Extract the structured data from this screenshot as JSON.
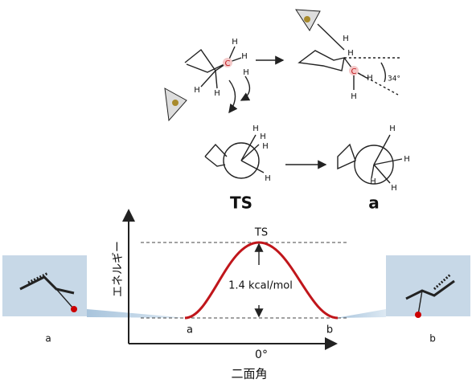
{
  "reaction_top": {
    "reactant_labels": [
      "H",
      "H",
      "C",
      "H",
      "H",
      "H"
    ],
    "product_labels": [
      "H",
      "H",
      "C",
      "H",
      "H"
    ],
    "angle": "34°"
  },
  "newman": {
    "reactant_labels": [
      "H",
      "H",
      "H",
      "H"
    ],
    "product_labels": [
      "H",
      "H",
      "H",
      "H"
    ]
  },
  "species": {
    "ts": "TS",
    "product": "a"
  },
  "diagram": {
    "y_label": "エネルギー",
    "peak_label": "TS",
    "barrier": "1.4 kcal/mol",
    "x_start": "a",
    "x_end": "b",
    "x_center": "0°",
    "x_label": "二面角"
  },
  "insets": {
    "left": "a",
    "right": "b"
  }
}
